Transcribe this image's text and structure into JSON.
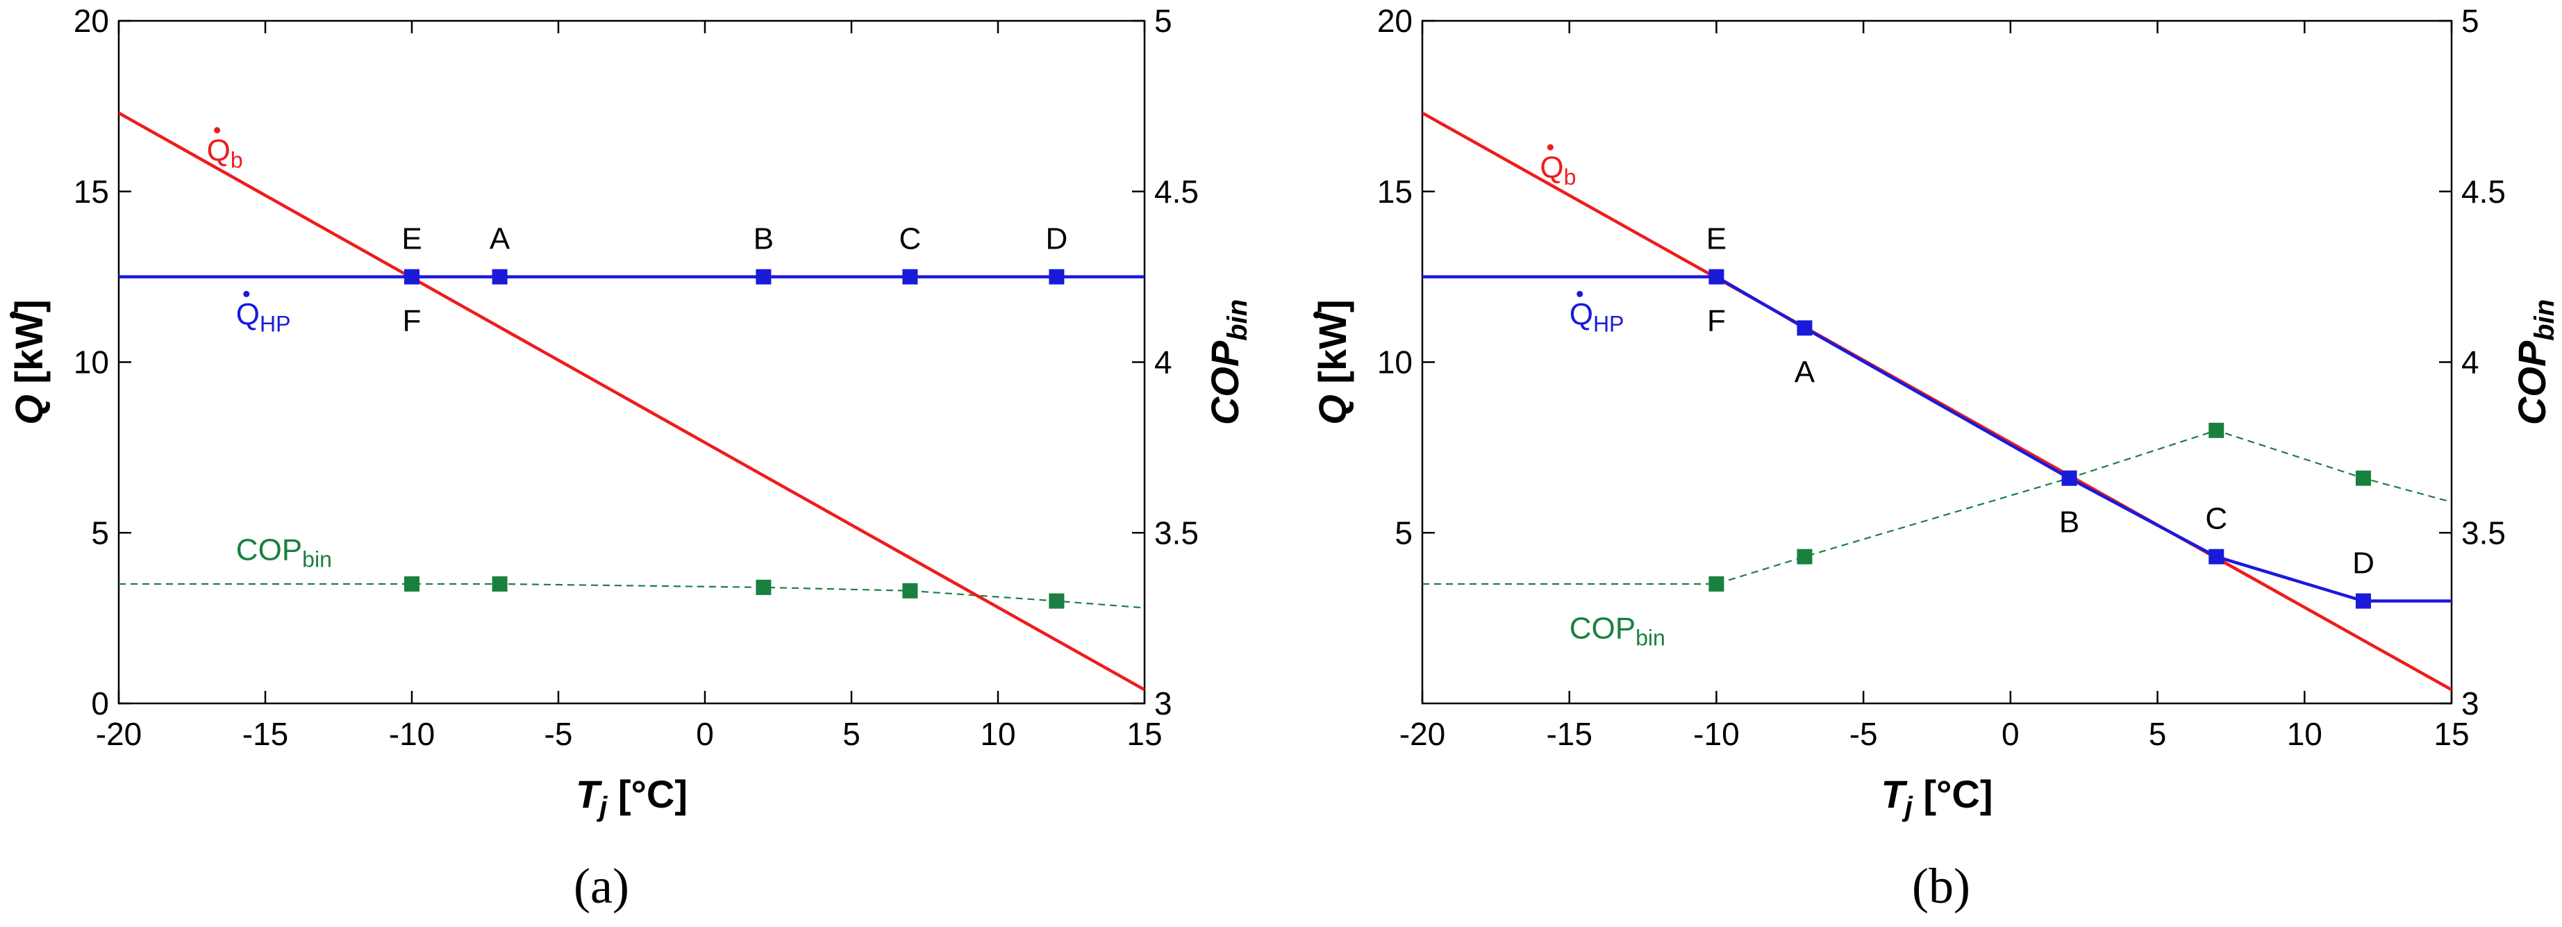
{
  "chart_data": [
    {
      "type": "line",
      "panel_caption": "(a)",
      "x_axis": {
        "label": "T",
        "label_sub": "j",
        "unit": "[°C]",
        "range": [
          -20,
          15
        ],
        "ticks": [
          "-20",
          "-15",
          "-10",
          "-5",
          "0",
          "5",
          "10",
          "15"
        ]
      },
      "y_left": {
        "label": "Q",
        "unit": "[kW]",
        "range": [
          0,
          20
        ],
        "ticks": [
          "0",
          "5",
          "10",
          "15",
          "20"
        ]
      },
      "y_right": {
        "label": "COP",
        "label_sub": "bin",
        "range": [
          3,
          5
        ],
        "ticks": [
          "3",
          "3.5",
          "4",
          "4.5",
          "5"
        ]
      },
      "series": [
        {
          "name": "Qb",
          "label_main": "Q",
          "label_sub": "b",
          "color": "#ee1c1c",
          "axis": "left",
          "style": "solid",
          "x": [
            -20,
            15
          ],
          "y": [
            17.3,
            0.4
          ]
        },
        {
          "name": "QHP",
          "label_main": "Q",
          "label_sub": "HP",
          "color": "#1a1adb",
          "axis": "left",
          "style": "solid",
          "x": [
            -20,
            -10,
            -7,
            2,
            7,
            12,
            15
          ],
          "y": [
            12.5,
            12.5,
            12.5,
            12.5,
            12.5,
            12.5,
            12.5
          ],
          "markers": [
            -10,
            -7,
            2,
            7,
            12
          ]
        },
        {
          "name": "COPbin",
          "label_main": "COP",
          "label_sub": "bin",
          "color": "#1a8040",
          "axis": "right",
          "style": "dashed",
          "x": [
            -20,
            -10,
            -7,
            2,
            7,
            12,
            15
          ],
          "y": [
            3.35,
            3.35,
            3.35,
            3.34,
            3.33,
            3.3,
            3.28
          ],
          "markers": [
            -10,
            -7,
            2,
            7,
            12
          ]
        }
      ],
      "point_labels": [
        {
          "text": "E",
          "x": -10,
          "pos": "above"
        },
        {
          "text": "F",
          "x": -10,
          "pos": "below"
        },
        {
          "text": "A",
          "x": -7,
          "pos": "above"
        },
        {
          "text": "B",
          "x": 2,
          "pos": "above"
        },
        {
          "text": "C",
          "x": 7,
          "pos": "above"
        },
        {
          "text": "D",
          "x": 12,
          "pos": "above"
        }
      ]
    },
    {
      "type": "line",
      "panel_caption": "(b)",
      "x_axis": {
        "label": "T",
        "label_sub": "j",
        "unit": "[°C]",
        "range": [
          -20,
          15
        ],
        "ticks": [
          "-20",
          "-15",
          "-10",
          "-5",
          "0",
          "5",
          "10",
          "15"
        ]
      },
      "y_left": {
        "label": "Q",
        "unit": "[kW]",
        "range": [
          0,
          20
        ],
        "ticks": [
          "5",
          "10",
          "15",
          "20"
        ]
      },
      "y_right": {
        "label": "COP",
        "label_sub": "bin",
        "range": [
          3,
          5
        ],
        "ticks": [
          "3",
          "3.5",
          "4",
          "4.5",
          "5"
        ]
      },
      "series": [
        {
          "name": "Qb",
          "label_main": "Q",
          "label_sub": "b",
          "color": "#ee1c1c",
          "axis": "left",
          "style": "solid",
          "x": [
            -20,
            15
          ],
          "y": [
            17.3,
            0.4
          ]
        },
        {
          "name": "QHP",
          "label_main": "Q",
          "label_sub": "HP",
          "color": "#1a1adb",
          "axis": "left",
          "style": "solid",
          "x": [
            -20,
            -10,
            -7,
            2,
            7,
            12,
            15
          ],
          "y": [
            12.5,
            12.5,
            11,
            6.6,
            4.3,
            3,
            3
          ],
          "markers": [
            -10,
            -7,
            2,
            7,
            12
          ]
        },
        {
          "name": "COPbin",
          "label_main": "COP",
          "label_sub": "bin",
          "color": "#1a8040",
          "axis": "right",
          "style": "dashed",
          "x": [
            -20,
            -10,
            -7,
            2,
            7,
            12,
            15
          ],
          "y": [
            3.35,
            3.35,
            3.43,
            3.66,
            3.8,
            3.66,
            3.59
          ],
          "markers": [
            -10,
            -7,
            2,
            7,
            12
          ]
        }
      ],
      "point_labels": [
        {
          "text": "E",
          "x": -10,
          "pos": "above"
        },
        {
          "text": "F",
          "x": -10,
          "pos": "below"
        },
        {
          "text": "A",
          "x": -7,
          "pos": "below"
        },
        {
          "text": "B",
          "x": 2,
          "pos": "below"
        },
        {
          "text": "C",
          "x": 7,
          "pos": "above"
        },
        {
          "text": "D",
          "x": 12,
          "pos": "above"
        }
      ]
    }
  ]
}
